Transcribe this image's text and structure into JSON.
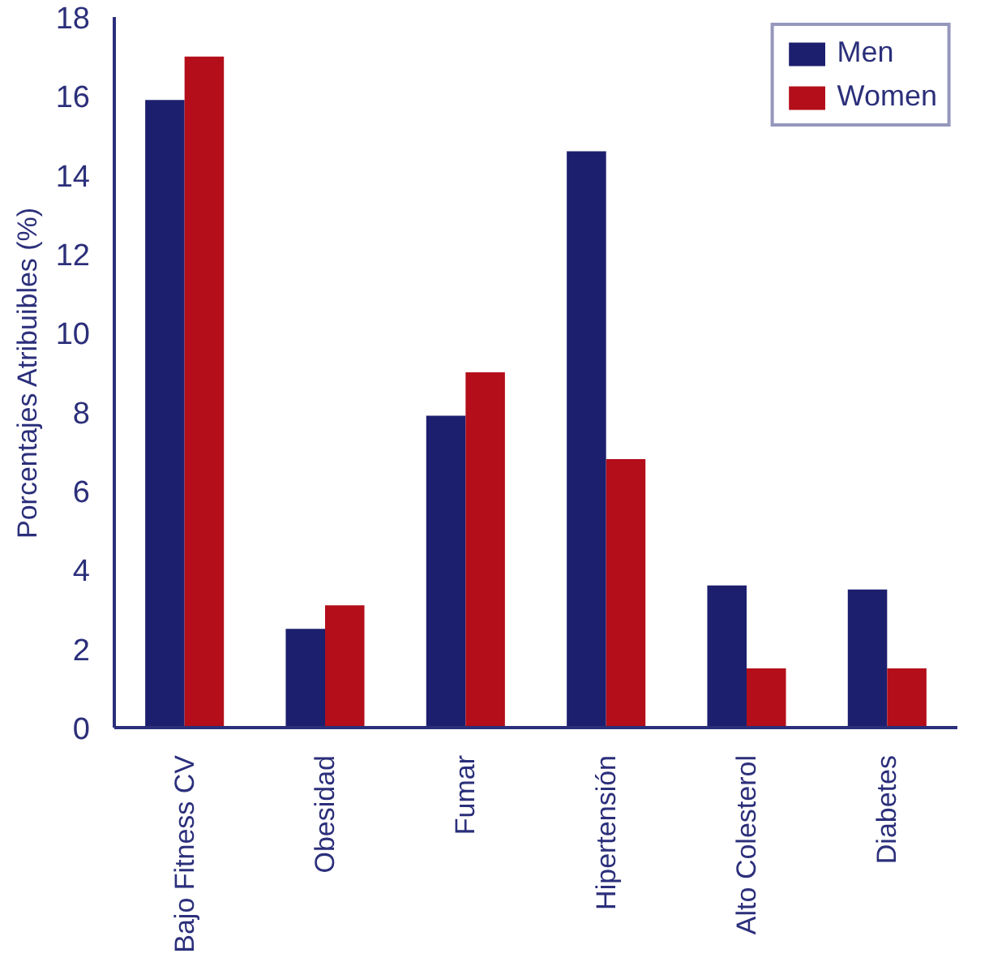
{
  "chart_data": {
    "type": "bar",
    "ylabel": "Porcentajes Atribuibles (%)",
    "categories": [
      "Bajo Fitness CV",
      "Obesidad",
      "Fumar",
      "Hipertensión",
      "Alto Colesterol",
      "Diabetes"
    ],
    "series": [
      {
        "name": "Men",
        "color": "#1c1f6e",
        "values": [
          15.9,
          2.5,
          7.9,
          14.6,
          3.6,
          3.5
        ]
      },
      {
        "name": "Women",
        "color": "#b30e1a",
        "values": [
          17.0,
          3.1,
          9.0,
          6.8,
          1.5,
          1.5
        ]
      }
    ],
    "ylim": [
      0,
      18
    ],
    "yticks": [
      0,
      2,
      4,
      6,
      8,
      10,
      12,
      14,
      16,
      18
    ],
    "grid": false,
    "legend": "top right"
  }
}
